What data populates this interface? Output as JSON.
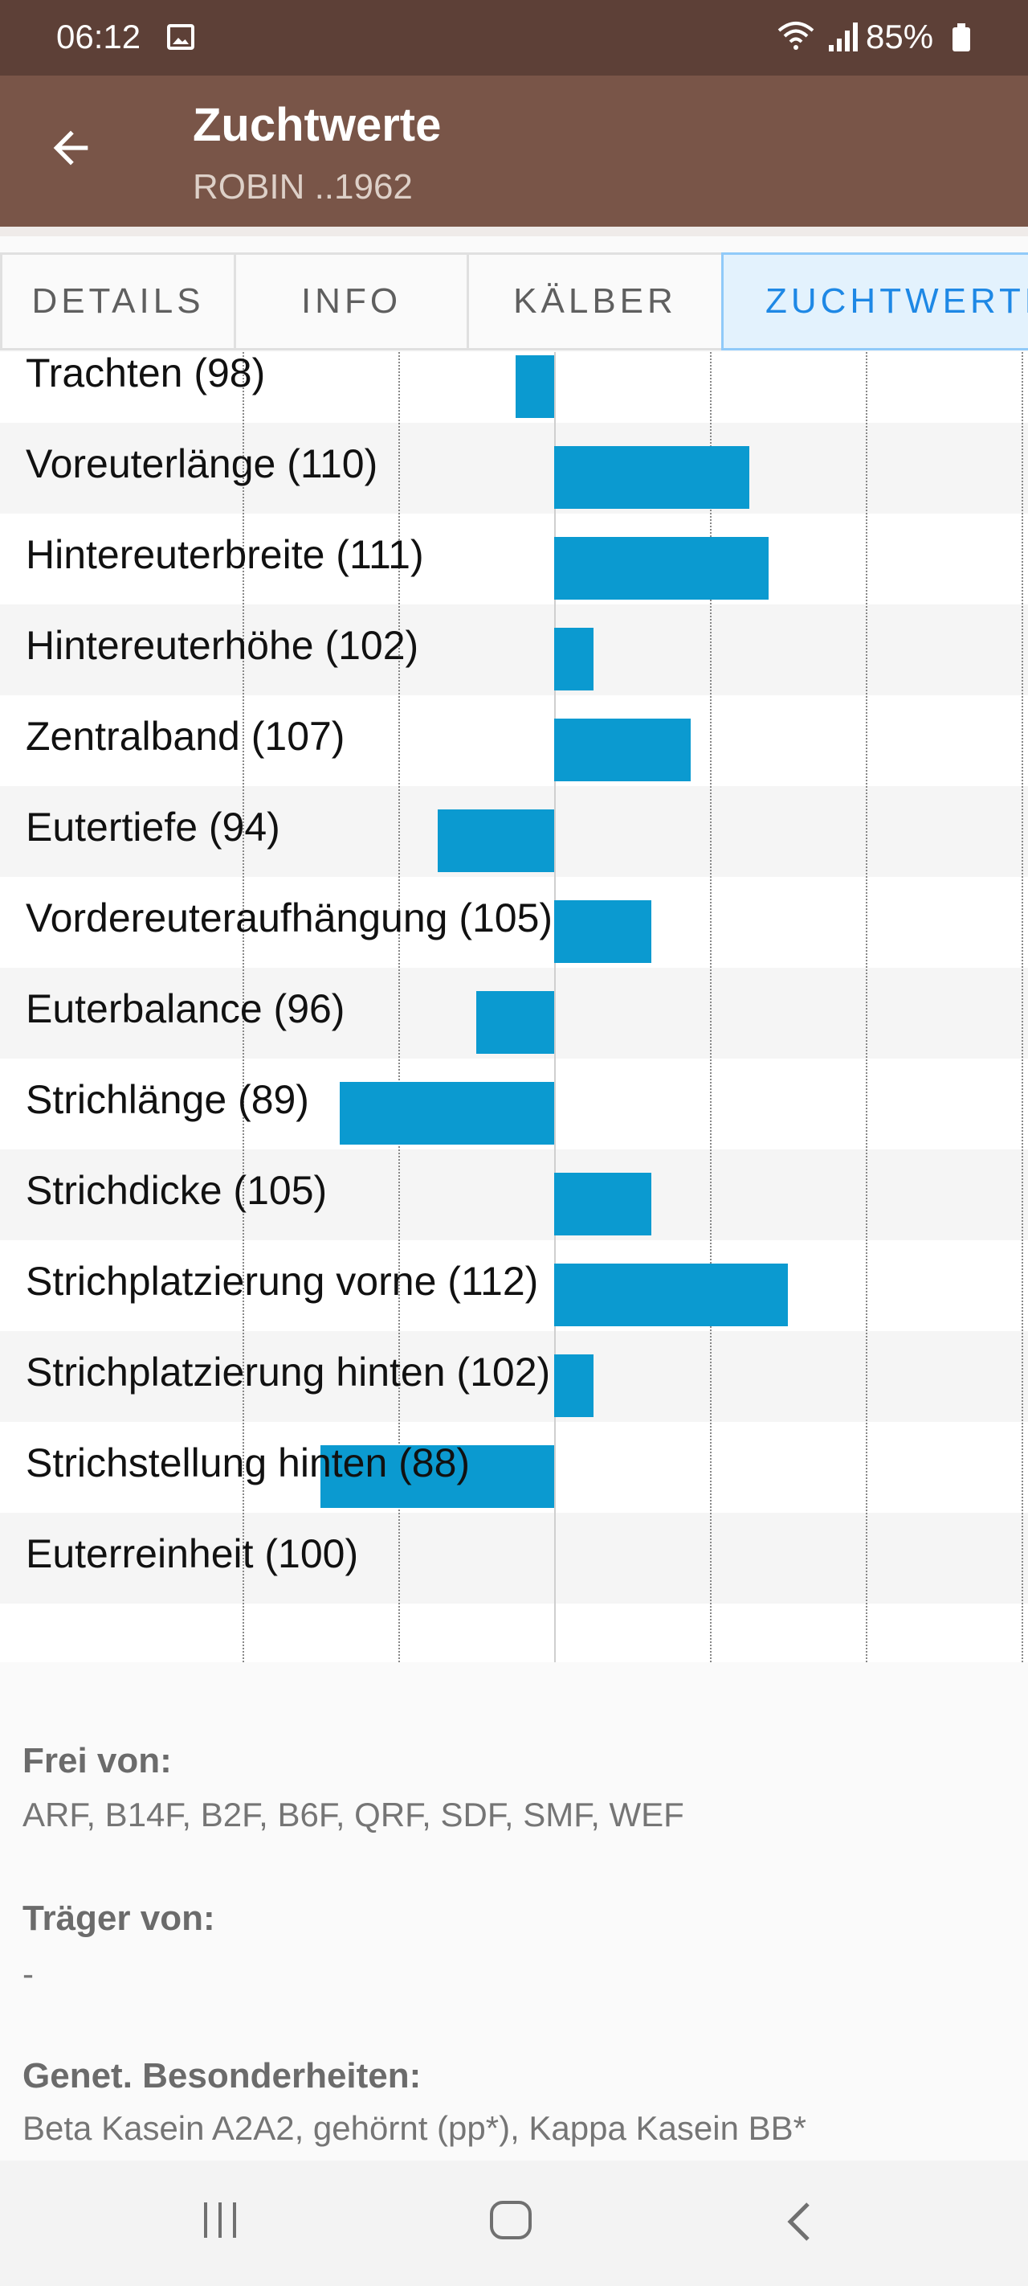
{
  "status_bar": {
    "time": "06:12",
    "battery": "85%",
    "icons": [
      "image-notification-icon",
      "wifi-icon",
      "signal-icon",
      "battery-icon"
    ]
  },
  "app_bar": {
    "title": "Zuchtwerte",
    "subtitle": "ROBIN ..1962",
    "back_icon": "arrow-left-icon"
  },
  "tabs": [
    {
      "label": "DETAILS",
      "active": false
    },
    {
      "label": "INFO",
      "active": false
    },
    {
      "label": "KÄLBER",
      "active": false
    },
    {
      "label": "ZUCHTWERTE",
      "active": true
    }
  ],
  "chart_data": {
    "type": "bar",
    "orientation": "horizontal",
    "baseline": 100,
    "xlim": [
      76,
      124
    ],
    "grid": true,
    "bar_color": "#0b9ad0",
    "categories": [
      "Trachten (98)",
      "Voreuterlänge (110)",
      "Hintereuterbreite (111)",
      "Hintereuterhöhe (102)",
      "Zentralband (107)",
      "Eutertiefe (94)",
      "Vordereuteraufhängung (105)",
      "Euterbalance (96)",
      "Strichlänge (89)",
      "Strichdicke (105)",
      "Strichplatzierung vorne (112)",
      "Strichplatzierung hinten (102)",
      "Strichstellung hinten (88)",
      "Euterreinheit (100)"
    ],
    "values": [
      98,
      110,
      111,
      102,
      107,
      94,
      105,
      96,
      89,
      105,
      112,
      102,
      88,
      100
    ]
  },
  "info": {
    "frei_von_label": "Frei von:",
    "frei_von_value": "ARF, B14F, B2F, B6F, QRF, SDF, SMF, WEF",
    "traeger_von_label": "Träger von:",
    "traeger_von_value": "-",
    "genet_label": "Genet. Besonderheiten:",
    "genet_value": "Beta Kasein A2A2, gehörnt (pp*), Kappa Kasein BB*"
  },
  "nav_bar": {
    "icons": [
      "recents-icon",
      "home-icon",
      "back-icon"
    ]
  }
}
